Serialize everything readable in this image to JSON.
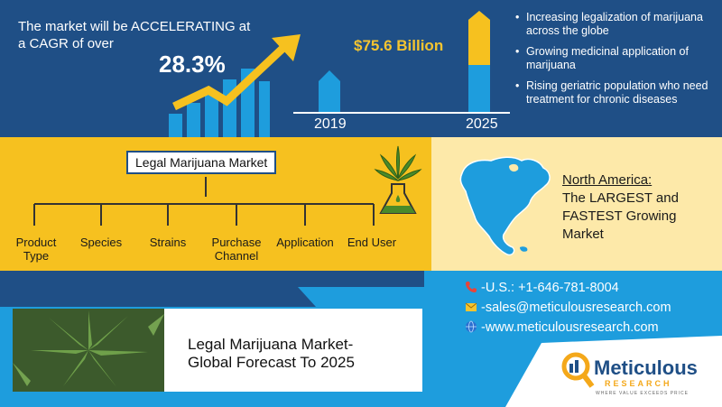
{
  "header": {
    "headline": "The market will be ACCELERATING at a CAGR of over",
    "cagr": "28.3%",
    "value": "$75.6 Billion",
    "year_start": "2019",
    "year_end": "2025"
  },
  "drivers": [
    "Increasing legalization of marijuana across the globe",
    "Growing medicinal application of marijuana",
    "Rising geriatric population who need treatment for chronic diseases"
  ],
  "segmentation": {
    "title": "Legal Marijuana Market",
    "segments": [
      "Product Type",
      "Species",
      "Strains",
      "Purchase Channel",
      "Application",
      "End User"
    ]
  },
  "region": {
    "name": "North America:",
    "description": "The LARGEST and FASTEST Growing Market"
  },
  "forecast": {
    "line1": "Legal Marijuana Market-",
    "line2": "Global Forecast To 2025"
  },
  "contact": {
    "phone": "-U.S.: +1-646-781-8004",
    "email": "-sales@meticulousresearch.com",
    "website": "-www.meticulousresearch.com"
  },
  "colors": {
    "navy": "#1f4f86",
    "gold": "#f6c11f",
    "sky": "#1e9ddd"
  }
}
